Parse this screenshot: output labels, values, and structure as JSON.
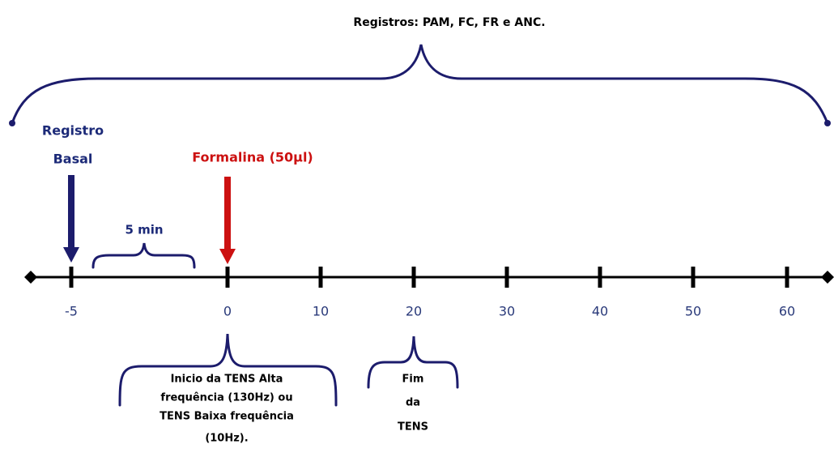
{
  "title": "Registros: PAM, FC, FR e ANC.",
  "basal": {
    "lines": [
      "Registro",
      "Basal"
    ]
  },
  "formalina": {
    "label": "Formalina (50µl)"
  },
  "interval": {
    "label": "5 min"
  },
  "ticks": [
    -5,
    0,
    10,
    20,
    30,
    40,
    50,
    60
  ],
  "tens_start": {
    "lines": [
      "Inicio da TENS Alta",
      "frequência (130Hz) ou",
      "TENS Baixa frequência",
      "(10Hz)."
    ]
  },
  "tens_end": {
    "lines": [
      "Fim",
      "da",
      "TENS"
    ]
  }
}
